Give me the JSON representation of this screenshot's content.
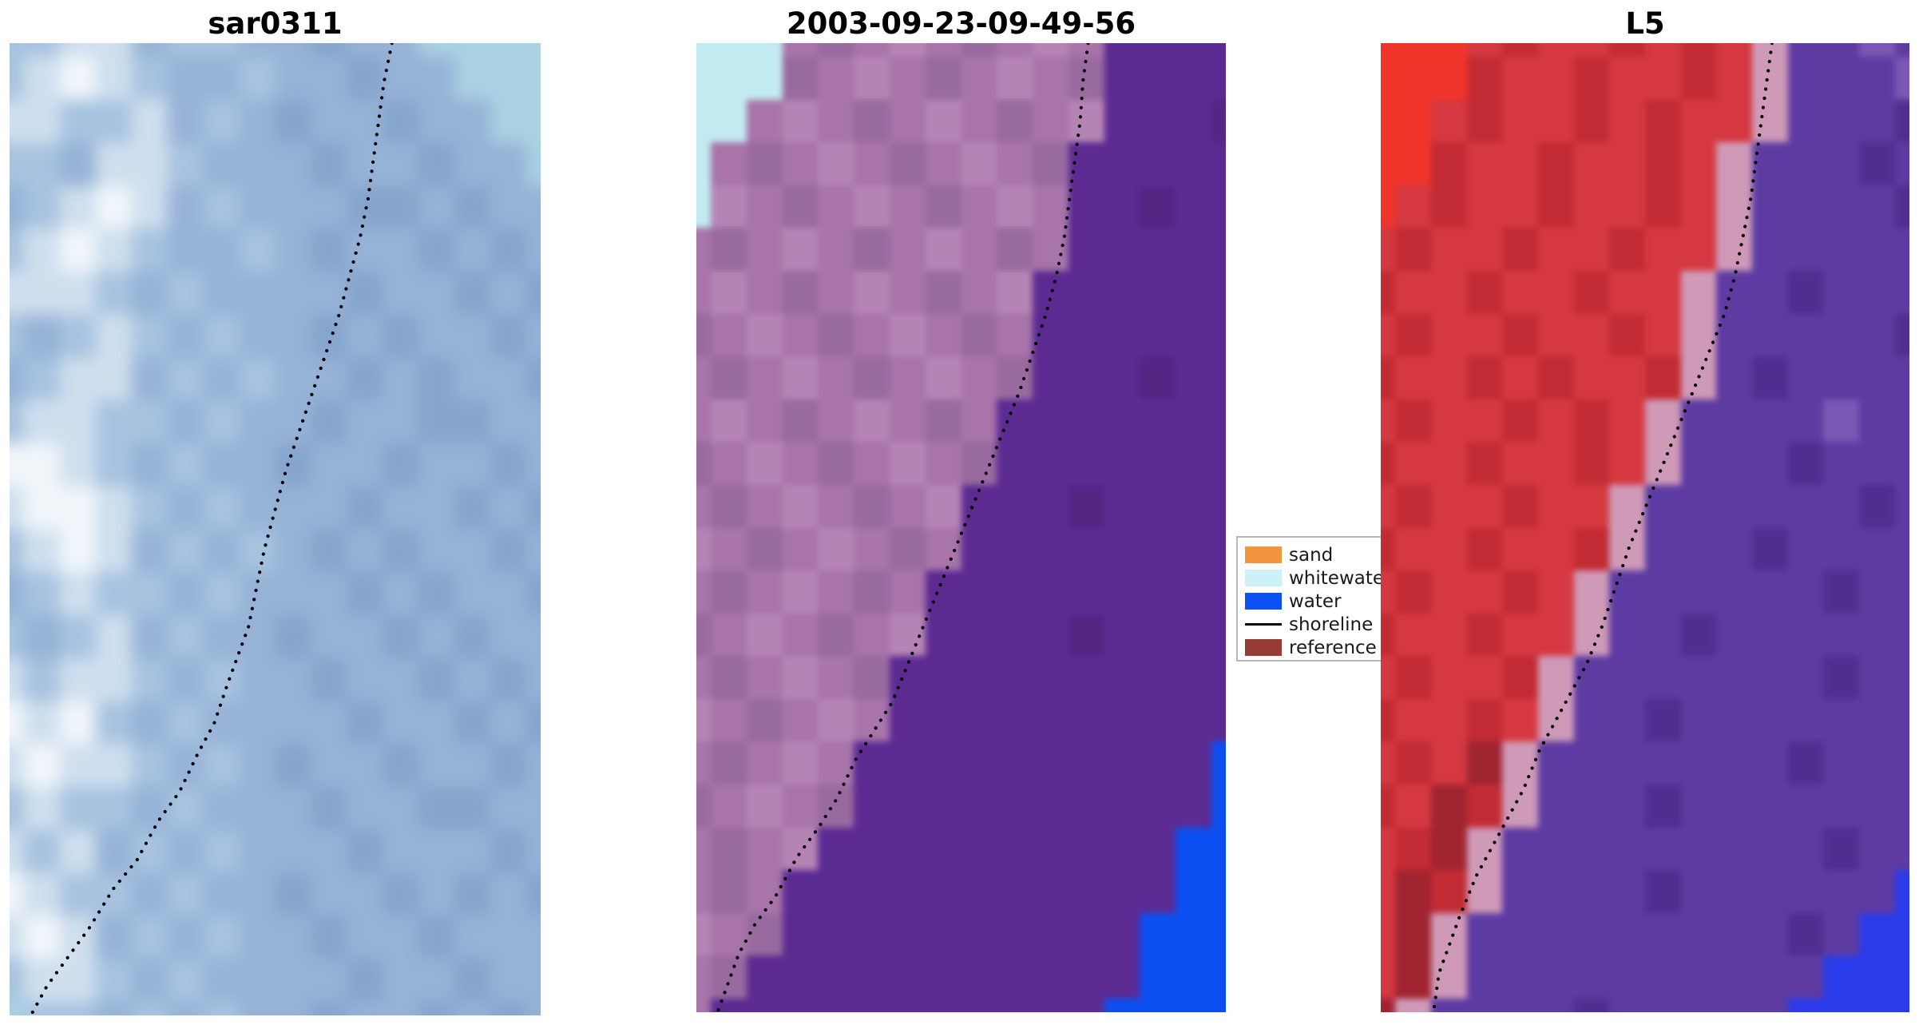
{
  "chart_data": {
    "type": "image",
    "description": "Three-panel coastal satellite imagery comparison with dotted detected-shoreline overlay and classification legend",
    "background": "#ffffff",
    "panels": [
      {
        "title": "sar0311",
        "palette": [
          "#a7c3e0",
          "#96b2d6",
          "#86a5cd",
          "#7b9ac6",
          "#cfdfee",
          "#f1f6fa",
          "#aad2e2",
          "#9fbbda"
        ],
        "grid_cols": 16,
        "grid_rows": 24,
        "rows": [
          "0044100112116666",
          "0454011011211666",
          "4400410121121166",
          "0014401112112116",
          "1045410111221211",
          "0454011012112121",
          "4440101111211212",
          "0104010112121121",
          "1044101011212112",
          "0440010112112211",
          "5540101121121121",
          "4554010111211212",
          "0454101012121121",
          "1040010111212112",
          "0104101121121211",
          "4044010112112121",
          "5450101111211212",
          "4544010121121121",
          "0400101112112211",
          "4041010111211121",
          "5400101121121212",
          "4541010112112111",
          "0440101111211211",
          "6001010112112121"
        ],
        "shoreline_pct": [
          [
            72,
            0
          ],
          [
            70.5,
            4
          ],
          [
            69.5,
            8
          ],
          [
            68.5,
            12
          ],
          [
            67.5,
            16
          ],
          [
            66,
            20
          ],
          [
            64,
            24
          ],
          [
            62,
            28
          ],
          [
            59.5,
            32
          ],
          [
            57,
            36
          ],
          [
            54.5,
            40
          ],
          [
            52,
            44
          ],
          [
            50,
            48
          ],
          [
            48,
            52
          ],
          [
            46.5,
            56
          ],
          [
            45,
            60
          ],
          [
            43,
            63
          ],
          [
            41,
            66
          ],
          [
            38.5,
            70
          ],
          [
            35.5,
            73
          ],
          [
            32,
            77
          ],
          [
            28,
            80
          ],
          [
            24,
            84
          ],
          [
            19.5,
            87
          ],
          [
            15,
            91
          ],
          [
            11,
            94
          ],
          [
            7,
            97
          ],
          [
            4,
            100
          ]
        ]
      },
      {
        "title": "2003-09-23-09-49-56",
        "palette": [
          "#a874aa",
          "#996a9f",
          "#b584b4",
          "#5c2b92",
          "#532684",
          "#c2ebf1",
          "#0b4ff2",
          "#6d3f9e"
        ],
        "grid_cols": 16,
        "grid_rows": 24,
        "rows": [
          "5550102010203333",
          "5551020102013333",
          "5502010201023334",
          "5010201020133333",
          "5201020102033433",
          "0102010201033333",
          "0201020102333333",
          "1020102010333333",
          "0102010201333433",
          "0201020103333333",
          "1020102013333333",
          "0102010233343333",
          "2010201033333333",
          "0102010333333333",
          "1020102333343333",
          "0102013333333333",
          "2010203333333333",
          "0102033333333336",
          "1020133333333336",
          "0102333333333366",
          "0103333333333366",
          "2013333333333666",
          "0133333333333666",
          "0333333333336666"
        ],
        "shoreline_pct": [
          [
            74,
            0
          ],
          [
            73,
            4
          ],
          [
            72.5,
            8
          ],
          [
            71.5,
            12
          ],
          [
            70.5,
            16
          ],
          [
            69.5,
            20
          ],
          [
            68,
            24
          ],
          [
            66,
            28
          ],
          [
            63.5,
            32
          ],
          [
            61,
            36
          ],
          [
            58,
            40
          ],
          [
            55,
            44
          ],
          [
            52,
            48
          ],
          [
            49,
            52
          ],
          [
            46,
            56
          ],
          [
            43,
            60
          ],
          [
            40,
            64
          ],
          [
            37,
            68
          ],
          [
            33.5,
            71
          ],
          [
            30,
            74
          ],
          [
            26.5,
            78
          ],
          [
            23,
            81
          ],
          [
            19,
            84
          ],
          [
            15,
            88
          ],
          [
            11,
            91
          ],
          [
            8,
            94
          ],
          [
            6,
            97
          ],
          [
            4,
            100
          ]
        ]
      },
      {
        "title": "L5",
        "palette": [
          "#d53840",
          "#c22b34",
          "#f1342a",
          "#5d3ba2",
          "#4e2f8f",
          "#7b57b5",
          "#cf9ab8",
          "#2a3cea",
          "#a02430"
        ],
        "grid_cols": 16,
        "grid_rows": 24,
        "rows": [
          "2220100101063353",
          "2221001001063335",
          "2201001010063334",
          "2210010010633343",
          "2010010010633334",
          "0100100100633333",
          "1001001006334333",
          "0100100106333334",
          "1001010016343333",
          "0100101063333533",
          "1001001063334333",
          "0100100633333343",
          "1001001633343333",
          "0100106333333433",
          "1001006334333333",
          "0100163333333433",
          "1001063343333333",
          "0108633333334333",
          "1081633343333333",
          "0186333333333433",
          "0816333343333337",
          "0863333333334377",
          "0863333333333777",
          "8633334333337777"
        ],
        "shoreline_pct": [
          [
            74,
            0
          ],
          [
            73,
            4
          ],
          [
            72,
            8
          ],
          [
            71,
            12
          ],
          [
            70,
            16
          ],
          [
            68.5,
            20
          ],
          [
            67,
            24
          ],
          [
            65,
            28
          ],
          [
            62,
            32
          ],
          [
            59,
            36
          ],
          [
            56,
            40
          ],
          [
            53,
            44
          ],
          [
            50,
            48
          ],
          [
            47,
            52
          ],
          [
            44.5,
            56
          ],
          [
            42,
            60
          ],
          [
            39,
            64
          ],
          [
            36,
            67
          ],
          [
            33,
            70
          ],
          [
            30,
            73
          ],
          [
            27,
            77
          ],
          [
            24,
            80
          ],
          [
            21,
            83
          ],
          [
            18,
            86
          ],
          [
            15,
            90
          ],
          [
            13,
            93
          ],
          [
            11,
            96
          ],
          [
            10,
            100
          ]
        ]
      }
    ],
    "legend": {
      "items": [
        {
          "label": "sand",
          "type": "patch",
          "color": "#f2953f"
        },
        {
          "label": "whitewater",
          "type": "patch",
          "color": "#ccf2f7"
        },
        {
          "label": "water",
          "type": "patch",
          "color": "#0c52f2"
        },
        {
          "label": "shoreline",
          "type": "line",
          "color": "#000000"
        },
        {
          "label": "reference s",
          "type": "patch",
          "color": "#973c35"
        }
      ]
    }
  }
}
